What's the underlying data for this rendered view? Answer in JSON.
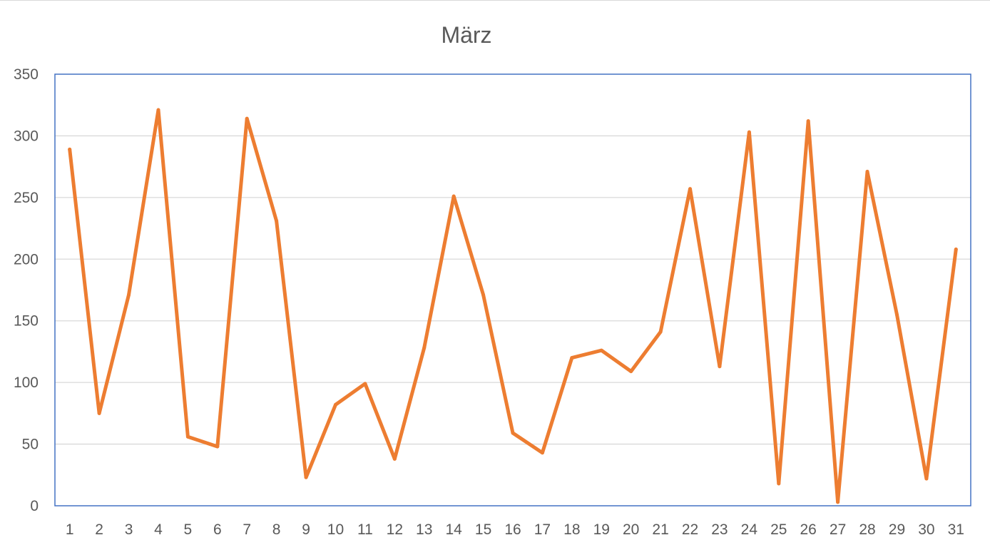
{
  "chart_data": {
    "type": "line",
    "title": "März",
    "xlabel": "",
    "ylabel": "",
    "categories": [
      "1",
      "2",
      "3",
      "4",
      "5",
      "6",
      "7",
      "8",
      "9",
      "10",
      "11",
      "12",
      "13",
      "14",
      "15",
      "16",
      "17",
      "18",
      "19",
      "20",
      "21",
      "22",
      "23",
      "24",
      "25",
      "26",
      "27",
      "28",
      "29",
      "30",
      "31"
    ],
    "series": [
      {
        "values": [
          289,
          75,
          171,
          321,
          56,
          48,
          314,
          231,
          23,
          82,
          99,
          38,
          128,
          251,
          171,
          59,
          43,
          120,
          126,
          109,
          141,
          257,
          113,
          303,
          18,
          312,
          3,
          271,
          155,
          22,
          208
        ]
      }
    ],
    "ylim": [
      0,
      350
    ],
    "yticks": [
      "0",
      "50",
      "100",
      "150",
      "200",
      "250",
      "300",
      "350"
    ],
    "grid": true,
    "legend": "none",
    "colors": {
      "line": "#ED7D31",
      "plot_border": "#4472C4",
      "grid": "#D9D9D9",
      "text": "#595959"
    }
  }
}
